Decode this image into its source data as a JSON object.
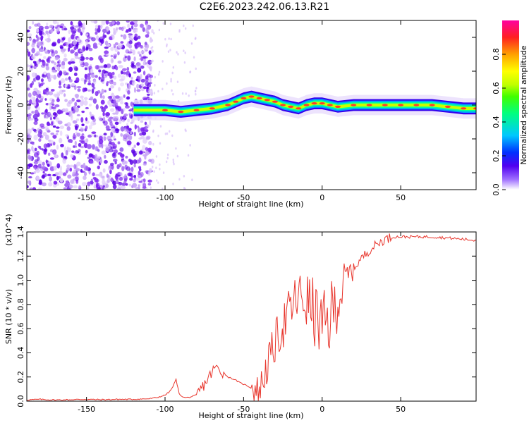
{
  "title": "C2E6.2023.242.06.13.R21",
  "chart_data": [
    {
      "type": "heatmap",
      "title": "C2E6.2023.242.06.13.R21",
      "xlabel": "Height of straight line (km)",
      "ylabel": "Frequency (Hz)",
      "xlim": [
        -188,
        98
      ],
      "ylim": [
        -50,
        50
      ],
      "xticks": [
        -150,
        -100,
        -50,
        0,
        50
      ],
      "yticks": [
        -40,
        -20,
        0,
        20,
        40
      ],
      "ridge": {
        "x": [
          -120,
          -110,
          -100,
          -90,
          -80,
          -70,
          -60,
          -55,
          -50,
          -45,
          -40,
          -35,
          -30,
          -25,
          -20,
          -15,
          -10,
          -5,
          0,
          5,
          10,
          20,
          30,
          40,
          50,
          60,
          70,
          80,
          90,
          98
        ],
        "y": [
          -3,
          -3,
          -3,
          -4,
          -3,
          -2,
          0,
          2,
          4,
          5,
          4,
          3,
          2,
          0,
          -1,
          -2,
          0,
          1,
          1,
          0,
          -1,
          0,
          0,
          0,
          0,
          0,
          0,
          -1,
          -2,
          -2
        ]
      },
      "colorbar": {
        "label": "Normalized spectral amplitude",
        "range": [
          0.0,
          1.0
        ],
        "ticks": [
          0.0,
          0.2,
          0.4,
          0.6,
          0.8
        ]
      }
    },
    {
      "type": "line",
      "xlabel": "Height of straight line (km)",
      "ylabel": "SNR (10 * v/v)",
      "scale_label": "(x10^4)",
      "xlim": [
        -188,
        98
      ],
      "ylim": [
        0.0,
        1.4
      ],
      "xticks": [
        -150,
        -100,
        -50,
        0,
        50
      ],
      "yticks": [
        0.0,
        0.2,
        0.4,
        0.6,
        0.8,
        1.0,
        1.2,
        1.4
      ],
      "series": [
        {
          "name": "SNR",
          "color": "#e8352c",
          "x": [
            -188,
            -180,
            -170,
            -160,
            -150,
            -140,
            -130,
            -120,
            -110,
            -105,
            -100,
            -97,
            -95,
            -93,
            -91,
            -88,
            -85,
            -80,
            -76,
            -72,
            -68,
            -64,
            -60,
            -56,
            -52,
            -48,
            -44,
            -40,
            -36,
            -32,
            -28,
            -24,
            -20,
            -16,
            -12,
            -8,
            -4,
            0,
            4,
            8,
            12,
            16,
            20,
            25,
            30,
            35,
            40,
            45,
            50,
            60,
            70,
            80,
            90,
            98
          ],
          "y": [
            0.01,
            0.015,
            0.01,
            0.012,
            0.015,
            0.012,
            0.015,
            0.015,
            0.02,
            0.03,
            0.05,
            0.08,
            0.12,
            0.18,
            0.06,
            0.03,
            0.03,
            0.05,
            0.12,
            0.2,
            0.28,
            0.25,
            0.2,
            0.18,
            0.15,
            0.13,
            0.1,
            0.08,
            0.25,
            0.4,
            0.55,
            0.65,
            0.75,
            0.85,
            0.85,
            0.8,
            0.7,
            0.6,
            0.65,
            0.78,
            0.9,
            1.02,
            1.1,
            1.18,
            1.25,
            1.3,
            1.34,
            1.36,
            1.36,
            1.36,
            1.36,
            1.35,
            1.34,
            1.33
          ]
        }
      ]
    }
  ]
}
